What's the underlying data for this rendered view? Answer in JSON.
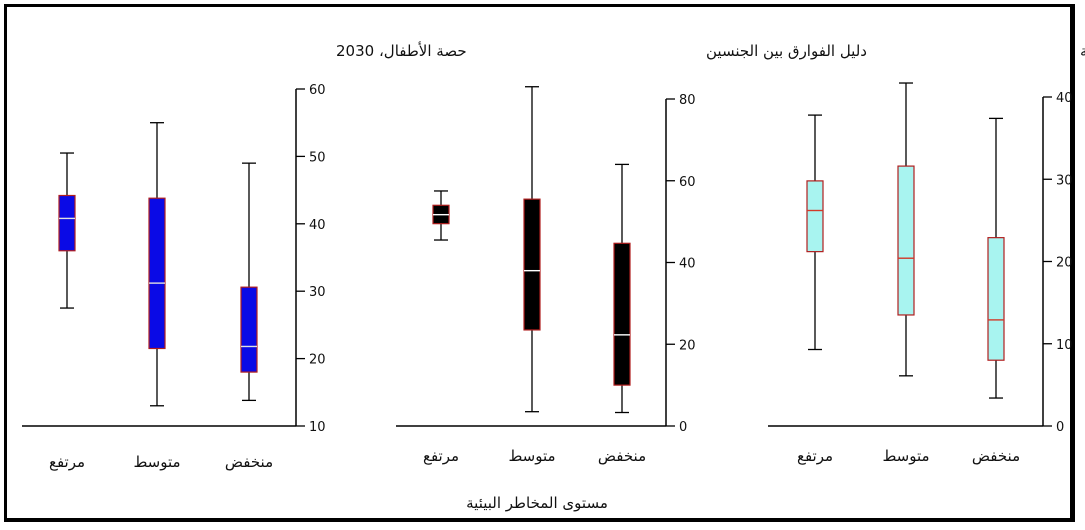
{
  "xlabel": "مستوى المخاطر البيئية",
  "chart_data": [
    {
      "type": "box",
      "title": "حصة الأطفال، 2030",
      "ylim": [
        10,
        60
      ],
      "yticks": [
        10,
        20,
        30,
        40,
        50,
        60
      ],
      "categories": [
        "مرتفع",
        "متوسط",
        "منخفض"
      ],
      "box_color": "#0a0ae6",
      "median_color": "#e0e0e0",
      "boxes": [
        {
          "min": 27.5,
          "q1": 36,
          "median": 40.8,
          "q3": 44.2,
          "max": 50.5
        },
        {
          "min": 13,
          "q1": 21.5,
          "median": 31.2,
          "q3": 43.8,
          "max": 55
        },
        {
          "min": 13.8,
          "q1": 18,
          "median": 21.8,
          "q3": 30.6,
          "max": 49
        }
      ]
    },
    {
      "type": "box",
      "title": "دليل الفوارق بين الجنسين",
      "ylim": [
        0,
        80
      ],
      "yticks": [
        0,
        20,
        40,
        60,
        80
      ],
      "categories": [
        "مرتفع",
        "متوسط",
        "منخفض"
      ],
      "box_color": "#000000",
      "median_color": "#ffffff",
      "boxes": [
        {
          "min": 45.5,
          "q1": 49.5,
          "median": 51.7,
          "q3": 54,
          "max": 57.5
        },
        {
          "min": 3.5,
          "q1": 23.5,
          "median": 38,
          "q3": 55.5,
          "max": 83
        },
        {
          "min": 3.3,
          "q1": 10,
          "median": 22.3,
          "q3": 44.7,
          "max": 64
        }
      ]
    },
    {
      "type": "box",
      "title": "عدم المساواة في التنمية البشرية",
      "ylim": [
        0,
        40
      ],
      "yticks": [
        0,
        10,
        20,
        30,
        40
      ],
      "categories": [
        "مرتفع",
        "متوسط",
        "منخفض"
      ],
      "box_color": "#a8f4f0",
      "median_color": "#d23a2a",
      "boxes": [
        {
          "min": 9.3,
          "q1": 21.2,
          "median": 26.2,
          "q3": 29.8,
          "max": 37.8
        },
        {
          "min": 6.1,
          "q1": 13.5,
          "median": 20.4,
          "q3": 31.6,
          "max": 41.7
        },
        {
          "min": 3.4,
          "q1": 8.0,
          "median": 12.9,
          "q3": 22.9,
          "max": 37.4
        }
      ]
    }
  ]
}
